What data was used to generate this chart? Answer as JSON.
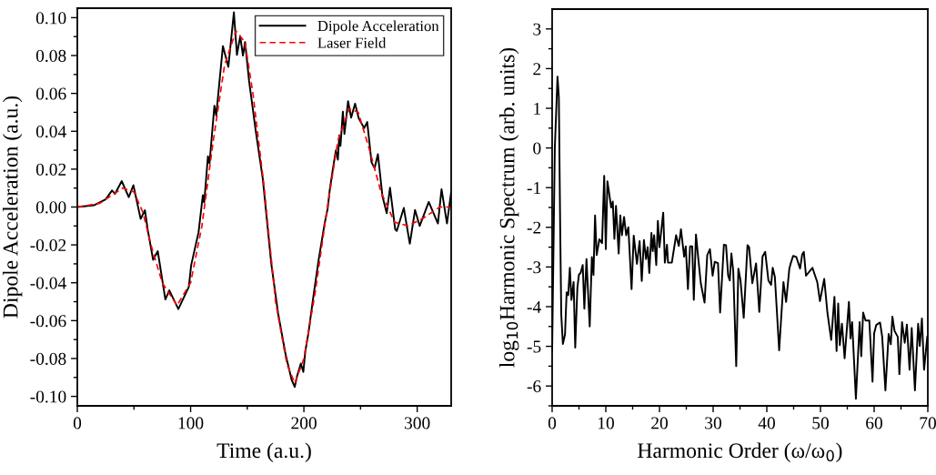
{
  "chart_data": [
    {
      "type": "line",
      "xlabel": "Time (a.u.)",
      "ylabel": "Dipole Acceleration (a.u.)",
      "xlim": [
        0,
        330
      ],
      "ylim": [
        -0.105,
        0.105
      ],
      "xticks": [
        0,
        {
          "value": 50,
          "label": null
        },
        100,
        {
          "value": 150,
          "label": null
        },
        200,
        {
          "value": 250,
          "label": null
        },
        300
      ],
      "yticks": [
        {
          "value": -0.1,
          "label": "-0.10"
        },
        {
          "value": -0.09,
          "label": null
        },
        {
          "value": -0.08,
          "label": "-0.08"
        },
        {
          "value": -0.07,
          "label": null
        },
        {
          "value": -0.06,
          "label": "-0.06"
        },
        {
          "value": -0.05,
          "label": null
        },
        {
          "value": -0.04,
          "label": "-0.04"
        },
        {
          "value": -0.03,
          "label": null
        },
        {
          "value": -0.02,
          "label": "-0.02"
        },
        {
          "value": -0.01,
          "label": null
        },
        {
          "value": 0,
          "label": "0.00"
        },
        {
          "value": 0.01,
          "label": null
        },
        {
          "value": 0.02,
          "label": "0.02"
        },
        {
          "value": 0.03,
          "label": null
        },
        {
          "value": 0.04,
          "label": "0.04"
        },
        {
          "value": 0.05,
          "label": null
        },
        {
          "value": 0.06,
          "label": "0.06"
        },
        {
          "value": 0.07,
          "label": null
        },
        {
          "value": 0.08,
          "label": "0.08"
        },
        {
          "value": 0.09,
          "label": null
        },
        {
          "value": 0.1,
          "label": "0.10"
        }
      ],
      "grid": false,
      "legend": "top right",
      "series": [
        {
          "name": "Dipole Acceleration",
          "color": "#000000",
          "line_style": "solid",
          "x": [
            0,
            15,
            25,
            30.6,
            33.3,
            39.2,
            45.4,
            49.5,
            55.9,
            59.7,
            62.1,
            66.9,
            71,
            77.7,
            81.2,
            89.2,
            98.4,
            100.5,
            107,
            110.8,
            112,
            115.3,
            116.7,
            121,
            122.6,
            128.5,
            133.3,
            138.2,
            140.9,
            143.8,
            146.2,
            148.1,
            151.6,
            157.5,
            163.7,
            171.2,
            177.2,
            183.9,
            189.2,
            191.9,
            194,
            197.3,
            199.5,
            201.3,
            204,
            208,
            212.9,
            218.3,
            221,
            222.8,
            225.5,
            228.2,
            230,
            231.2,
            232.3,
            234.4,
            235.8,
            239,
            241.7,
            245.2,
            248.4,
            253.2,
            255.9,
            259.7,
            262.4,
            265.3,
            269.4,
            273.1,
            276,
            280.6,
            282,
            288.2,
            291.4,
            293.5,
            298.1,
            302.2,
            310.2,
            318.3,
            321.5,
            326.3,
            330
          ],
          "values": [
            0,
            0.001,
            0.004,
            0.0087,
            0.007,
            0.0137,
            0.0052,
            0.0115,
            -0.0063,
            -0.0017,
            -0.0118,
            -0.0279,
            -0.0233,
            -0.0488,
            -0.044,
            -0.0539,
            -0.0422,
            -0.0307,
            -0.0134,
            0.0063,
            0.0024,
            0.0268,
            0.023,
            0.0535,
            0.0483,
            0.085,
            0.074,
            0.1028,
            0.0803,
            0.0902,
            0.08,
            0.0871,
            0.0666,
            0.0402,
            0.015,
            -0.0299,
            -0.0561,
            -0.078,
            -0.0913,
            -0.095,
            -0.0893,
            -0.0827,
            -0.0871,
            -0.076,
            -0.0666,
            -0.0488,
            -0.0283,
            -0.0087,
            -0.0008,
            0.009,
            0.0197,
            0.0299,
            0.025,
            0.0378,
            0.0323,
            0.0504,
            0.0386,
            0.0559,
            0.0472,
            0.0546,
            0.0468,
            0.0417,
            0.0449,
            0.0236,
            0.0205,
            0.0279,
            0.0055,
            -0.0033,
            0.0102,
            -0.0118,
            -0.0126,
            -0.0005,
            -0.012,
            -0.0194,
            -0.0016,
            -0.01,
            0.0027,
            -0.0087,
            0.0094,
            -0.0087,
            0.0079
          ]
        },
        {
          "name": "Laser Field",
          "color": "#ff0000",
          "line_style": "dashed",
          "x": [
            0,
            20,
            40,
            50,
            58,
            65,
            75,
            88,
            100,
            110,
            120,
            130,
            140,
            148,
            155,
            165,
            175,
            185,
            192,
            200,
            210,
            220,
            230,
            240,
            248,
            258,
            268,
            280,
            292,
            305,
            320,
            330
          ],
          "values": [
            0,
            0.002,
            0.01,
            0.008,
            -0.003,
            -0.02,
            -0.04,
            -0.052,
            -0.04,
            -0.01,
            0.035,
            0.075,
            0.093,
            0.087,
            0.06,
            0.01,
            -0.05,
            -0.083,
            -0.093,
            -0.08,
            -0.045,
            -0.003,
            0.035,
            0.052,
            0.05,
            0.03,
            0.008,
            -0.008,
            -0.01,
            -0.006,
            0.0,
            0.0
          ]
        }
      ]
    },
    {
      "type": "line",
      "xlabel": "Harmonic Order (ω/ω$_{0}$)",
      "ylabel": "log$_{10}$Harmonic Spectrum (arb. units)",
      "xlim": [
        0,
        70
      ],
      "ylim": [
        -6.5,
        3.5
      ],
      "xticks": [
        0,
        {
          "value": 5,
          "label": null
        },
        10,
        {
          "value": 15,
          "label": null
        },
        20,
        {
          "value": 25,
          "label": null
        },
        30,
        {
          "value": 35,
          "label": null
        },
        40,
        {
          "value": 45,
          "label": null
        },
        50,
        {
          "value": 55,
          "label": null
        },
        60,
        {
          "value": 65,
          "label": null
        },
        70
      ],
      "yticks": [
        {
          "value": -6.5,
          "label": null
        },
        -6,
        {
          "value": -5.5,
          "label": null
        },
        -5,
        {
          "value": -4.5,
          "label": null
        },
        -4,
        {
          "value": -3.5,
          "label": null
        },
        -3,
        {
          "value": -2.5,
          "label": null
        },
        -2,
        {
          "value": -1.5,
          "label": null
        },
        -1,
        {
          "value": -0.5,
          "label": null
        },
        0,
        {
          "value": 0.5,
          "label": null
        },
        1,
        {
          "value": 1.5,
          "label": null
        },
        2,
        {
          "value": 2.5,
          "label": null
        },
        3
      ],
      "grid": false,
      "legend": false,
      "series": [
        {
          "color": "#000000",
          "line_style": "solid",
          "x": [
            0,
            0.5,
            1.0,
            1.25,
            1.5,
            1.7,
            2.0,
            2.4,
            2.7,
            3.0,
            3.3,
            3.6,
            4.0,
            4.3,
            4.7,
            5.0,
            5.3,
            5.7,
            6.0,
            6.4,
            7.0,
            7.4,
            7.7,
            8.0,
            8.3,
            8.8,
            9.3,
            9.7,
            10.0,
            10.3,
            11,
            11.3,
            11.6,
            11.9,
            12.4,
            12.7,
            13.0,
            13.4,
            13.8,
            14.2,
            14.8,
            15.2,
            15.8,
            16.3,
            16.7,
            17.1,
            17.5,
            17.8,
            18.1,
            18.5,
            18.75,
            19.0,
            19.4,
            19.7,
            20.0,
            20.7,
            21.0,
            21.4,
            21.6,
            22.3,
            23.1,
            23.6,
            24.0,
            24.6,
            24.9,
            25.3,
            25.7,
            26.1,
            26.4,
            26.8,
            27.2,
            27.7,
            28.4,
            28.9,
            29.4,
            29.9,
            30.3,
            30.9,
            31.3,
            32.0,
            32.4,
            32.8,
            33.1,
            33.4,
            33.75,
            34.3,
            34.7,
            35.1,
            35.7,
            36.4,
            36.7,
            37.3,
            38.0,
            38.6,
            39.2,
            39.7,
            40.3,
            40.8,
            41.1,
            41.5,
            42.3,
            43.1,
            43.6,
            44.2,
            44.5,
            44.9,
            45.5,
            46.2,
            46.6,
            46.9,
            47.3,
            48.5,
            49.4,
            49.9,
            50.7,
            51.3,
            52.0,
            52.6,
            53.0,
            53.3,
            53.6,
            54.0,
            54.5,
            55.3,
            55.6,
            55.9,
            56.6,
            57.3,
            57.6,
            57.95,
            58.4,
            59.1,
            59.7,
            60.0,
            60.4,
            61.1,
            61.5,
            62.1,
            62.7,
            63.1,
            63.4,
            63.8,
            64.4,
            64.7,
            65.2,
            65.7,
            66.1,
            66.6,
            67.0,
            67.6,
            68.2,
            68.5,
            68.9,
            69.3,
            69.9
          ],
          "values": [
            -5.1,
            0.0,
            1.8,
            1.28,
            -2.0,
            -4.2,
            -4.94,
            -4.7,
            -3.64,
            -3.71,
            -3.02,
            -3.83,
            -3.38,
            -5.03,
            -3.53,
            -3.19,
            -3.15,
            -2.95,
            -4.05,
            -2.8,
            -4.5,
            -2.75,
            -3.2,
            -1.7,
            -2.7,
            -2.3,
            -2.4,
            -0.7,
            -2.55,
            -0.84,
            -1.5,
            -1.35,
            -2.29,
            -1.46,
            -2.66,
            -1.7,
            -2.2,
            -1.74,
            -2.2,
            -2.0,
            -3.56,
            -2.21,
            -2.92,
            -2.35,
            -3.35,
            -2.32,
            -2.8,
            -2.5,
            -3.15,
            -2.14,
            -2.6,
            -2.2,
            -2.95,
            -1.84,
            -2.5,
            -1.63,
            -2.89,
            -2.44,
            -2.89,
            -2.89,
            -2.2,
            -2.47,
            -2.05,
            -2.74,
            -2.48,
            -3.56,
            -2.48,
            -2.48,
            -3.83,
            -2.18,
            -2.74,
            -3.41,
            -3.9,
            -2.7,
            -2.55,
            -3.22,
            -2.87,
            -2.9,
            -4.15,
            -2.44,
            -2.45,
            -3.22,
            -3.34,
            -2.66,
            -3.11,
            -5.5,
            -3.04,
            -3.34,
            -4.28,
            -2.45,
            -2.5,
            -3.41,
            -2.91,
            -4.13,
            -2.74,
            -2.62,
            -3.34,
            -3.45,
            -3.02,
            -3.25,
            -5.1,
            -3.38,
            -3.88,
            -3.04,
            -2.89,
            -2.72,
            -2.75,
            -3.04,
            -2.68,
            -2.62,
            -3.22,
            -3.02,
            -3.38,
            -3.86,
            -3.3,
            -4.16,
            -4.84,
            -3.75,
            -5.12,
            -3.92,
            -4.97,
            -4.43,
            -5.3,
            -3.88,
            -4.8,
            -4.39,
            -6.32,
            -4.39,
            -5.25,
            -4.15,
            -4.35,
            -4.35,
            -5.89,
            -4.67,
            -4.46,
            -4.4,
            -4.76,
            -6.11,
            -4.69,
            -4.95,
            -4.25,
            -4.61,
            -4.76,
            -5.7,
            -4.39,
            -4.91,
            -4.45,
            -5.59,
            -4.54,
            -6.11,
            -4.43,
            -4.99,
            -4.3,
            -5.59,
            -4.76
          ]
        }
      ]
    }
  ]
}
